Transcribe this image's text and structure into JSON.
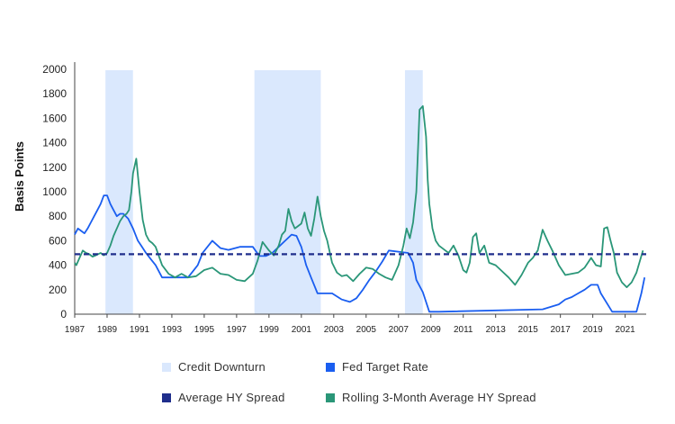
{
  "chart_data": {
    "type": "line",
    "ylabel": "Basis Points",
    "xlabel": "",
    "ylim": [
      0,
      2000
    ],
    "xlim": [
      1987,
      2022.3
    ],
    "y_ticks": [
      0,
      200,
      400,
      600,
      800,
      1000,
      1200,
      1400,
      1600,
      1800,
      2000
    ],
    "x_ticks": [
      1987,
      1989,
      1991,
      1993,
      1995,
      1997,
      1999,
      2001,
      2003,
      2005,
      2007,
      2009,
      2011,
      2013,
      2015,
      2017,
      2019,
      2021
    ],
    "grid": false,
    "legend_position": "bottom",
    "shaded_periods": [
      {
        "start": 1988.9,
        "end": 1990.6
      },
      {
        "start": 1998.1,
        "end": 2002.2
      },
      {
        "start": 2007.4,
        "end": 2008.5
      }
    ],
    "average_hy_spread": 490,
    "series": [
      {
        "name": "Fed Target Rate",
        "color": "#1a5ef0",
        "x": [
          1987.0,
          1987.2,
          1987.4,
          1987.6,
          1987.8,
          1988.0,
          1988.2,
          1988.4,
          1988.6,
          1988.8,
          1989.0,
          1989.2,
          1989.4,
          1989.6,
          1989.8,
          1990.0,
          1990.3,
          1990.6,
          1990.9,
          1991.1,
          1991.4,
          1991.7,
          1992.0,
          1992.4,
          1993.0,
          1994.0,
          1994.3,
          1994.6,
          1994.9,
          1995.2,
          1995.5,
          1996.0,
          1996.5,
          1997.2,
          1998.0,
          1998.4,
          1998.8,
          1999.2,
          1999.6,
          2000.0,
          2000.4,
          2000.7,
          2001.0,
          2001.3,
          2001.6,
          2002.0,
          2002.9,
          2003.5,
          2004.0,
          2004.4,
          2004.8,
          2005.2,
          2005.6,
          2006.0,
          2006.4,
          2007.6,
          2007.9,
          2008.1,
          2008.5,
          2008.9,
          2009.5,
          2015.9,
          2016.9,
          2017.3,
          2017.7,
          2018.1,
          2018.5,
          2018.9,
          2019.3,
          2019.5,
          2020.2,
          2021.0,
          2021.7,
          2022.0,
          2022.2
        ],
        "y": [
          650,
          700,
          680,
          660,
          700,
          750,
          800,
          850,
          900,
          970,
          970,
          900,
          850,
          800,
          820,
          820,
          780,
          700,
          600,
          560,
          500,
          450,
          400,
          300,
          300,
          300,
          350,
          400,
          500,
          550,
          600,
          540,
          525,
          550,
          550,
          475,
          475,
          500,
          550,
          600,
          650,
          640,
          550,
          400,
          300,
          170,
          170,
          120,
          100,
          130,
          200,
          280,
          350,
          430,
          520,
          500,
          420,
          280,
          180,
          20,
          20,
          40,
          80,
          120,
          140,
          170,
          200,
          240,
          240,
          170,
          20,
          20,
          20,
          170,
          300
        ]
      },
      {
        "name": "Rolling 3-Month Average HY Spread",
        "color": "#2a9678",
        "x": [
          1987.0,
          1987.1,
          1987.3,
          1987.5,
          1987.7,
          1987.9,
          1988.1,
          1988.3,
          1988.6,
          1988.8,
          1989.0,
          1989.2,
          1989.4,
          1989.6,
          1989.8,
          1990.0,
          1990.2,
          1990.35,
          1990.5,
          1990.6,
          1990.8,
          1991.0,
          1991.2,
          1991.4,
          1991.6,
          1991.8,
          1992.0,
          1992.4,
          1992.8,
          1993.2,
          1993.6,
          1994.0,
          1994.5,
          1995.0,
          1995.5,
          1996.0,
          1996.5,
          1997.0,
          1997.5,
          1998.0,
          1998.3,
          1998.6,
          1999.0,
          1999.3,
          1999.6,
          1999.8,
          2000.0,
          2000.2,
          2000.4,
          2000.6,
          2000.8,
          2001.0,
          2001.2,
          2001.4,
          2001.6,
          2001.8,
          2002.0,
          2002.2,
          2002.4,
          2002.6,
          2002.9,
          2003.2,
          2003.5,
          2003.8,
          2004.2,
          2004.6,
          2005.0,
          2005.4,
          2005.8,
          2006.2,
          2006.6,
          2007.0,
          2007.3,
          2007.5,
          2007.7,
          2007.9,
          2008.1,
          2008.3,
          2008.5,
          2008.7,
          2008.8,
          2008.9,
          2009.0,
          2009.1,
          2009.3,
          2009.5,
          2009.7,
          2009.9,
          2010.1,
          2010.4,
          2010.7,
          2011.0,
          2011.2,
          2011.4,
          2011.6,
          2011.8,
          2012.0,
          2012.3,
          2012.6,
          2013.0,
          2013.4,
          2013.8,
          2014.2,
          2014.6,
          2015.0,
          2015.3,
          2015.6,
          2015.9,
          2016.2,
          2016.5,
          2016.9,
          2017.3,
          2017.7,
          2018.1,
          2018.5,
          2018.7,
          2018.9,
          2019.2,
          2019.5,
          2019.7,
          2019.9,
          2020.1,
          2020.3,
          2020.5,
          2020.8,
          2021.1,
          2021.4,
          2021.7,
          2021.9,
          2022.1
        ],
        "y": [
          420,
          400,
          460,
          520,
          500,
          490,
          470,
          480,
          500,
          480,
          500,
          560,
          640,
          700,
          760,
          800,
          820,
          850,
          1000,
          1150,
          1270,
          1000,
          770,
          650,
          600,
          580,
          550,
          400,
          330,
          300,
          330,
          300,
          310,
          360,
          380,
          330,
          320,
          280,
          270,
          330,
          440,
          590,
          520,
          480,
          560,
          650,
          680,
          860,
          760,
          700,
          720,
          740,
          830,
          700,
          640,
          780,
          960,
          800,
          680,
          600,
          420,
          340,
          310,
          320,
          270,
          330,
          380,
          370,
          330,
          300,
          280,
          400,
          560,
          700,
          620,
          750,
          1000,
          1670,
          1700,
          1450,
          1100,
          900,
          800,
          700,
          600,
          560,
          540,
          520,
          500,
          560,
          480,
          360,
          340,
          420,
          630,
          660,
          500,
          560,
          420,
          400,
          350,
          300,
          240,
          320,
          420,
          460,
          520,
          690,
          600,
          520,
          400,
          320,
          330,
          340,
          380,
          420,
          460,
          400,
          390,
          700,
          710,
          600,
          500,
          340,
          260,
          220,
          260,
          340,
          430,
          520
        ]
      }
    ],
    "legend": [
      {
        "label": "Credit Downturn",
        "color": "#dae8fd"
      },
      {
        "label": "Fed Target Rate",
        "color": "#1a5ef0"
      },
      {
        "label": "Average HY Spread",
        "color": "#1f2e8c"
      },
      {
        "label": "Rolling 3-Month Average HY Spread",
        "color": "#2a9678"
      }
    ]
  }
}
